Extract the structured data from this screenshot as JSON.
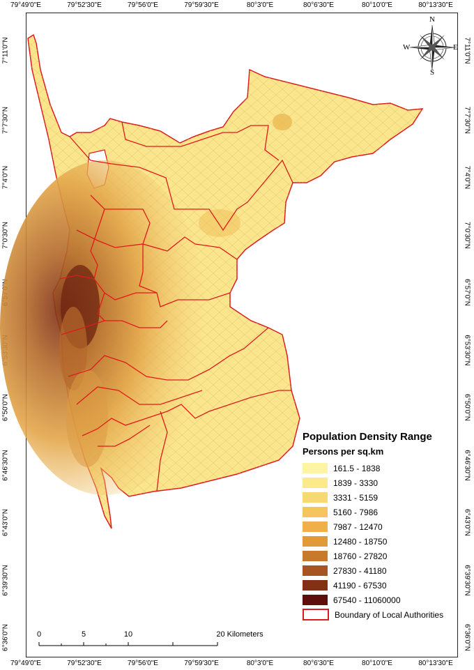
{
  "lon_ticks": [
    "79°49'0\"E",
    "79°52'30\"E",
    "79°56'0\"E",
    "79°59'30\"E",
    "80°3'0\"E",
    "80°6'30\"E",
    "80°10'0\"E",
    "80°13'30\"E"
  ],
  "lat_ticks": [
    "7°11'0\"N",
    "7°7'30\"N",
    "7°4'0\"N",
    "7°0'30\"N",
    "6°57'0\"N",
    "6°53'30\"N",
    "6°50'0\"N",
    "6°46'30\"N",
    "6°43'0\"N",
    "6°39'30\"N",
    "6°36'0\"N"
  ],
  "legend": {
    "title": "Population Density Range",
    "subtitle": "Persons per sq.km",
    "classes": [
      {
        "label": "161.5 - 1838",
        "color": "#fdf5a4"
      },
      {
        "label": "1839 - 3330",
        "color": "#fbe98a"
      },
      {
        "label": "3331 - 5159",
        "color": "#f8d873"
      },
      {
        "label": "5160 - 7986",
        "color": "#f5c55d"
      },
      {
        "label": "7987 - 12470",
        "color": "#efb04a"
      },
      {
        "label": "12480 - 18750",
        "color": "#e09a3a"
      },
      {
        "label": "18760 - 27820",
        "color": "#c87a2c"
      },
      {
        "label": "27830 - 41180",
        "color": "#a65422"
      },
      {
        "label": "41190 - 67530",
        "color": "#833017"
      },
      {
        "label": "67540 - 11060000",
        "color": "#5e0f0c"
      }
    ],
    "boundary_label": "Boundary of Local Authorities",
    "boundary_color": "#e01a1a"
  },
  "compass": {
    "n": "N",
    "s": "S",
    "e": "E",
    "w": "W"
  },
  "scale": {
    "labels": [
      "0",
      "5",
      "10",
      "20 Kilometers"
    ]
  }
}
